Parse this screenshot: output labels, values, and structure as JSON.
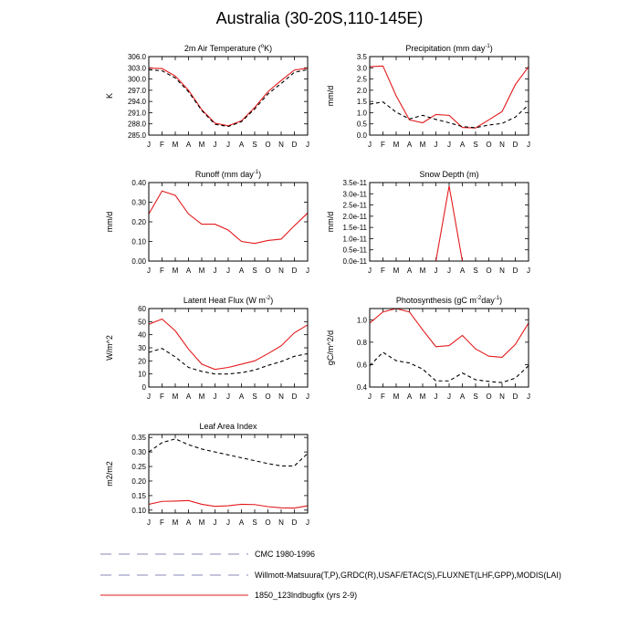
{
  "figure": {
    "title": "Australia (30-20S,110-145E)"
  },
  "months": [
    "J",
    "F",
    "M",
    "A",
    "M",
    "J",
    "J",
    "A",
    "S",
    "O",
    "N",
    "D",
    "J"
  ],
  "colors": {
    "model": "#e31a1c",
    "obs": "#000000",
    "legend_dash": "#8a8ab8",
    "axis": "#000000"
  },
  "chart_data": [
    {
      "type": "line",
      "title_parts": [
        "2m Air Temperature (",
        "o",
        "K)"
      ],
      "title_sup_index": 1,
      "ylabel": "K",
      "ylim": [
        285.0,
        306.0
      ],
      "yticks": [
        "285.0",
        "288.0",
        "291.0",
        "294.0",
        "297.0",
        "300.0",
        "303.0",
        "306.0"
      ],
      "ytick_values": [
        285,
        288,
        291,
        294,
        297,
        300,
        303,
        306
      ],
      "series": [
        {
          "name": "1850_123lndbugfix (yrs 2-9)",
          "style": "model",
          "values": [
            302.9,
            302.8,
            300.8,
            297.0,
            291.8,
            288.2,
            287.5,
            288.8,
            292.4,
            296.6,
            299.6,
            302.4,
            302.9
          ]
        },
        {
          "name": "CMC 1980-1996",
          "style": "obs",
          "values": [
            302.5,
            302.2,
            300.3,
            296.6,
            291.6,
            287.9,
            287.3,
            288.6,
            292.0,
            296.0,
            298.8,
            301.8,
            302.5
          ]
        }
      ]
    },
    {
      "type": "line",
      "title_parts": [
        "Precipitation (mm day",
        "-1",
        ")"
      ],
      "title_sup_index": 1,
      "ylabel": "mm/d",
      "ylim": [
        0.0,
        3.5
      ],
      "yticks": [
        "0.0",
        "0.5",
        "1.0",
        "1.5",
        "2.0",
        "2.5",
        "3.0",
        "3.5"
      ],
      "ytick_values": [
        0,
        0.5,
        1,
        1.5,
        2,
        2.5,
        3,
        3.5
      ],
      "series": [
        {
          "name": "1850_123lndbugfix (yrs 2-9)",
          "style": "model",
          "values": [
            3.05,
            3.08,
            1.75,
            0.68,
            0.55,
            0.92,
            0.88,
            0.34,
            0.32,
            0.68,
            1.05,
            2.25,
            3.05
          ]
        },
        {
          "name": "Willmott-Matsuura",
          "style": "obs",
          "values": [
            1.38,
            1.48,
            1.02,
            0.72,
            0.88,
            0.7,
            0.55,
            0.38,
            0.33,
            0.45,
            0.52,
            0.8,
            1.35
          ]
        }
      ]
    },
    {
      "type": "line",
      "title_parts": [
        "Runoff (mm day",
        "-1",
        ")"
      ],
      "title_sup_index": 1,
      "ylabel": "mm/d",
      "ylim": [
        0.0,
        0.4
      ],
      "yticks": [
        "0.00",
        "0.10",
        "0.20",
        "0.30",
        "0.40"
      ],
      "ytick_values": [
        0,
        0.1,
        0.2,
        0.3,
        0.4
      ],
      "series": [
        {
          "name": "1850_123lndbugfix (yrs 2-9)",
          "style": "model",
          "values": [
            0.24,
            0.357,
            0.335,
            0.24,
            0.188,
            0.188,
            0.158,
            0.1,
            0.09,
            0.105,
            0.112,
            0.18,
            0.245
          ]
        }
      ]
    },
    {
      "type": "line",
      "title_parts": [
        "Snow Depth (m)"
      ],
      "title_sup_index": -1,
      "ylabel": "mm/d",
      "ylim": [
        0.0,
        3.5e-11
      ],
      "yticks": [
        "0.0e-11",
        "0.5e-11",
        "1.0e-11",
        "1.5e-11",
        "2.0e-11",
        "2.5e-11",
        "3.0e-11",
        "3.5e-11"
      ],
      "ytick_values": [
        0,
        5e-12,
        1e-11,
        1.5e-11,
        2e-11,
        2.5e-11,
        3e-11,
        3.5e-11
      ],
      "series": [
        {
          "name": "1850_123lndbugfix (yrs 2-9)",
          "style": "model",
          "values": [
            null,
            null,
            null,
            null,
            null,
            0.0,
            3.35e-11,
            0.0,
            null,
            null,
            null,
            null,
            null
          ]
        }
      ]
    },
    {
      "type": "line",
      "title_parts": [
        "Latent Heat Flux (W m",
        "-2",
        ")"
      ],
      "title_sup_index": 1,
      "ylabel": "W/m^2",
      "ylim": [
        0,
        60
      ],
      "yticks": [
        "0",
        "10",
        "20",
        "30",
        "40",
        "50",
        "60"
      ],
      "ytick_values": [
        0,
        10,
        20,
        30,
        40,
        50,
        60
      ],
      "series": [
        {
          "name": "1850_123lndbugfix (yrs 2-9)",
          "style": "model",
          "values": [
            48.0,
            52.0,
            43.0,
            29.0,
            17.5,
            13.5,
            15.0,
            17.5,
            20.0,
            25.5,
            31.5,
            41.5,
            47.5
          ]
        },
        {
          "name": "FLUXNET(LHF)",
          "style": "obs",
          "values": [
            26.5,
            29.5,
            23.0,
            15.0,
            12.0,
            10.0,
            10.0,
            11.0,
            13.0,
            16.5,
            19.5,
            23.5,
            25.5
          ]
        }
      ]
    },
    {
      "type": "line",
      "title_parts": [
        "Photosynthesis (gC m",
        "-2",
        "day",
        "-1",
        ")"
      ],
      "title_sup_index": -2,
      "ylabel": "gC/m^2/d",
      "ylim": [
        0.4,
        1.1
      ],
      "yticks": [
        "0.4",
        "0.6",
        "0.8",
        "1.0"
      ],
      "ytick_values": [
        0.4,
        0.6,
        0.8,
        1.0
      ],
      "series": [
        {
          "name": "1850_123lndbugfix (yrs 2-9)",
          "style": "model",
          "values": [
            0.97,
            1.07,
            1.1,
            1.07,
            0.91,
            0.76,
            0.77,
            0.86,
            0.74,
            0.675,
            0.665,
            0.78,
            0.97
          ]
        },
        {
          "name": "FLUXNET(GPP)",
          "style": "obs",
          "values": [
            0.59,
            0.71,
            0.635,
            0.615,
            0.56,
            0.455,
            0.455,
            0.525,
            0.465,
            0.45,
            0.44,
            0.48,
            0.59
          ]
        }
      ]
    },
    {
      "type": "line",
      "title_parts": [
        "Leaf Area Index"
      ],
      "title_sup_index": -1,
      "ylabel": "m2/m2",
      "ylim": [
        0.09,
        0.36
      ],
      "yticks": [
        "0.10",
        "0.15",
        "0.20",
        "0.25",
        "0.30",
        "0.35"
      ],
      "ytick_values": [
        0.1,
        0.15,
        0.2,
        0.25,
        0.3,
        0.35
      ],
      "series": [
        {
          "name": "1850_123lndbugfix (yrs 2-9)",
          "style": "model",
          "values": [
            0.12,
            0.13,
            0.131,
            0.133,
            0.12,
            0.113,
            0.115,
            0.12,
            0.119,
            0.112,
            0.108,
            0.107,
            0.115
          ]
        },
        {
          "name": "MODIS(LAI)",
          "style": "obs",
          "values": [
            0.3,
            0.332,
            0.345,
            0.325,
            0.31,
            0.3,
            0.29,
            0.28,
            0.27,
            0.26,
            0.252,
            0.252,
            0.295
          ]
        }
      ]
    }
  ],
  "legend": [
    {
      "label": "CMC 1980-1996",
      "style": "dash"
    },
    {
      "label": "Willmott-Matsuura(T,P),GRDC(R),USAF/ETAC(S),FLUXNET(LHF,GPP),MODIS(LAI)",
      "style": "dash"
    },
    {
      "label": "1850_123lndbugfix (yrs 2-9)",
      "style": "solid"
    }
  ]
}
